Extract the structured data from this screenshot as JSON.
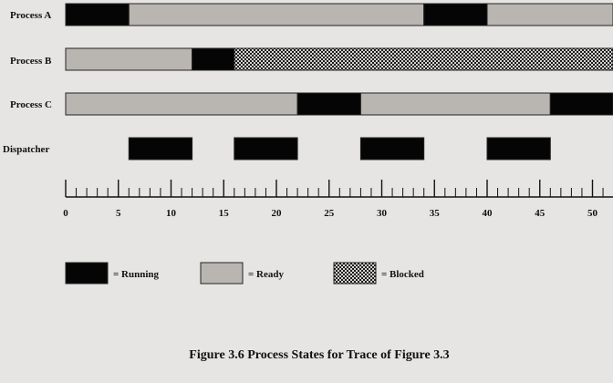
{
  "caption": "Figure 3.6   Process States for Trace of Figure 3.3",
  "colors": {
    "running": "#050505",
    "ready": "#b9b5b1",
    "blocked_fg": "#1a1a1a",
    "blocked_bg": "#d4d2cf",
    "outline": "#222222",
    "background": "#e6e5e3"
  },
  "axis": {
    "min": 0,
    "max": 52,
    "major_ticks": [
      0,
      5,
      10,
      15,
      20,
      25,
      30,
      35,
      40,
      45,
      50
    ],
    "minor_step": 1
  },
  "rows": [
    {
      "label": "Process A",
      "segments": [
        {
          "state": "running",
          "start": 0,
          "end": 6
        },
        {
          "state": "ready",
          "start": 6,
          "end": 34
        },
        {
          "state": "running",
          "start": 34,
          "end": 40
        },
        {
          "state": "ready",
          "start": 40,
          "end": 52
        }
      ]
    },
    {
      "label": "Process B",
      "segments": [
        {
          "state": "ready",
          "start": 0,
          "end": 12
        },
        {
          "state": "running",
          "start": 12,
          "end": 16
        },
        {
          "state": "blocked",
          "start": 16,
          "end": 52
        }
      ]
    },
    {
      "label": "Process C",
      "segments": [
        {
          "state": "ready",
          "start": 0,
          "end": 22
        },
        {
          "state": "running",
          "start": 22,
          "end": 28
        },
        {
          "state": "ready",
          "start": 28,
          "end": 46
        },
        {
          "state": "running",
          "start": 46,
          "end": 52
        }
      ]
    },
    {
      "label": "Dispatcher",
      "segments": [
        {
          "state": "running",
          "start": 6,
          "end": 12
        },
        {
          "state": "running",
          "start": 16,
          "end": 22
        },
        {
          "state": "running",
          "start": 28,
          "end": 34
        },
        {
          "state": "running",
          "start": 40,
          "end": 46
        }
      ]
    }
  ],
  "legend": [
    {
      "state": "running",
      "label": "= Running"
    },
    {
      "state": "ready",
      "label": "= Ready"
    },
    {
      "state": "blocked",
      "label": "= Blocked"
    }
  ]
}
